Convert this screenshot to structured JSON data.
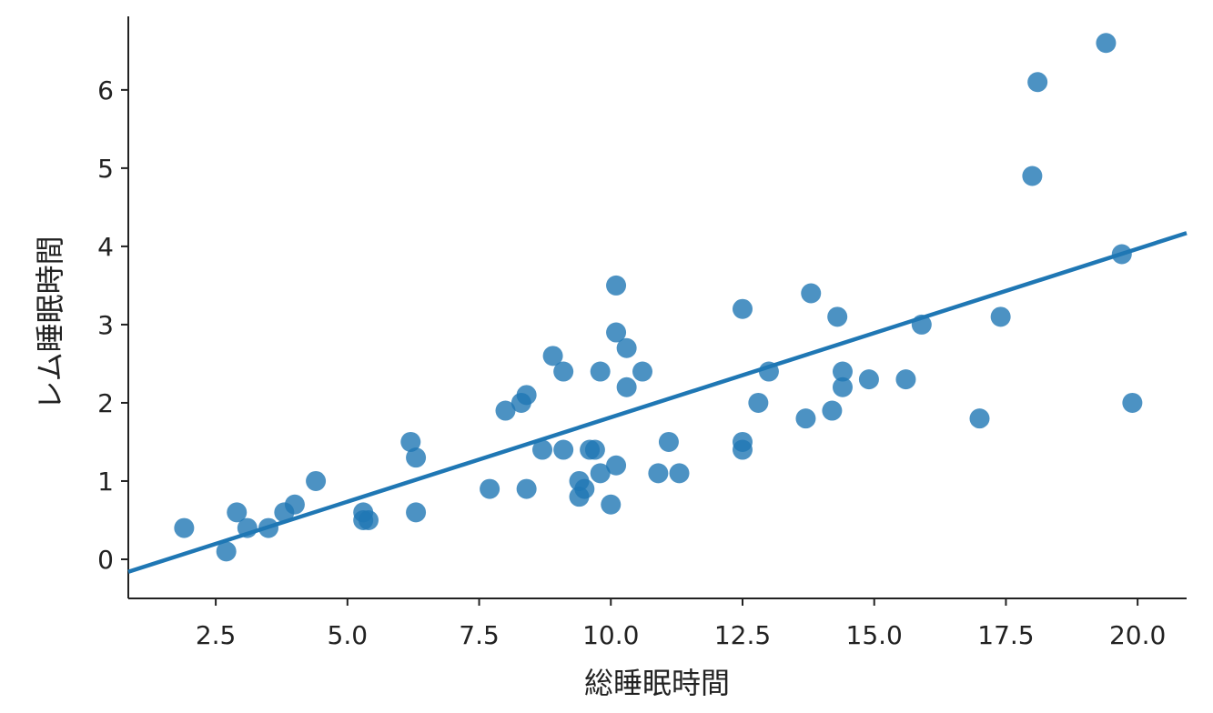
{
  "chart_data": {
    "type": "scatter",
    "xlabel": "総睡眠時間",
    "ylabel": "レム睡眠時間",
    "color": "#1f77b4",
    "x": [
      1.9,
      2.7,
      2.9,
      3.1,
      3.5,
      3.8,
      4.0,
      4.4,
      5.3,
      5.3,
      5.4,
      6.2,
      6.3,
      6.3,
      7.7,
      8.0,
      8.3,
      8.4,
      8.4,
      8.7,
      8.9,
      9.1,
      9.1,
      9.4,
      9.4,
      9.5,
      9.6,
      9.7,
      9.8,
      9.8,
      10.0,
      10.1,
      10.1,
      10.1,
      10.3,
      10.3,
      10.6,
      10.9,
      11.1,
      11.3,
      12.5,
      12.5,
      12.5,
      12.8,
      13.0,
      13.7,
      13.8,
      14.2,
      14.3,
      14.4,
      14.4,
      14.9,
      15.6,
      15.9,
      17.0,
      17.4,
      18.0,
      18.1,
      19.4,
      19.7,
      19.9
    ],
    "values": [
      0.4,
      0.1,
      0.6,
      0.4,
      0.4,
      0.6,
      0.7,
      1.0,
      0.6,
      0.5,
      0.5,
      1.5,
      1.3,
      0.6,
      0.9,
      1.9,
      2.0,
      2.1,
      0.9,
      1.4,
      2.6,
      2.4,
      1.4,
      1.0,
      0.8,
      0.9,
      1.4,
      1.4,
      1.1,
      2.4,
      0.7,
      1.2,
      3.5,
      2.9,
      2.7,
      2.2,
      2.4,
      1.1,
      1.5,
      1.1,
      3.2,
      1.5,
      1.4,
      2.0,
      2.4,
      1.8,
      3.4,
      1.9,
      3.1,
      2.2,
      2.4,
      2.3,
      2.3,
      3.0,
      1.8,
      3.1,
      4.9,
      6.1,
      6.6,
      3.9,
      2.0
    ],
    "fit": {
      "x": [
        0.84,
        20.93
      ],
      "values": [
        -0.16,
        4.17
      ]
    },
    "xlim": [
      0.84,
      20.93
    ],
    "ylim": [
      -0.5,
      6.94
    ],
    "xticks": [
      2.5,
      {
        "value": 5,
        "label": "5.0"
      },
      7.5,
      {
        "value": 10,
        "label": "10.0"
      },
      12.5,
      {
        "value": 15,
        "label": "15.0"
      },
      17.5,
      {
        "value": 20,
        "label": "20.0"
      }
    ],
    "yticks": [
      0,
      1,
      2,
      3,
      4,
      5,
      6
    ]
  }
}
